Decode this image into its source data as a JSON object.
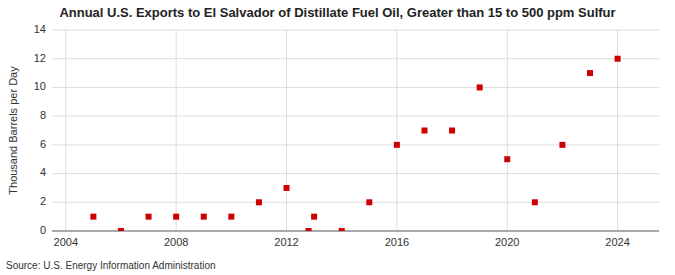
{
  "chart_data": {
    "type": "scatter",
    "title": "Annual U.S. Exports to El Salvador of Distillate Fuel Oil, Greater than 15 to 500 ppm Sulfur",
    "ylabel": "Thousand Barrels per Day",
    "source": "Source: U.S. Energy Information Administration",
    "x": [
      2005,
      2006,
      2007,
      2008,
      2009,
      2010,
      2011,
      2012,
      2012.8,
      2013,
      2014,
      2015,
      2016,
      2017,
      2018,
      2019,
      2020,
      2021,
      2022,
      2023,
      2024
    ],
    "values": [
      1,
      0,
      1,
      1,
      1,
      1,
      2,
      3,
      0,
      1,
      0,
      2,
      6,
      7,
      7,
      10,
      5,
      2,
      6,
      11,
      12
    ],
    "xlim": [
      2003.5,
      2025.5
    ],
    "ylim": [
      0,
      14
    ],
    "xticks": [
      2004,
      2008,
      2012,
      2016,
      2020,
      2024
    ],
    "yticks": [
      0,
      2,
      4,
      6,
      8,
      10,
      12,
      14
    ],
    "color": "#CC0000",
    "marker": "square",
    "grid": true
  }
}
